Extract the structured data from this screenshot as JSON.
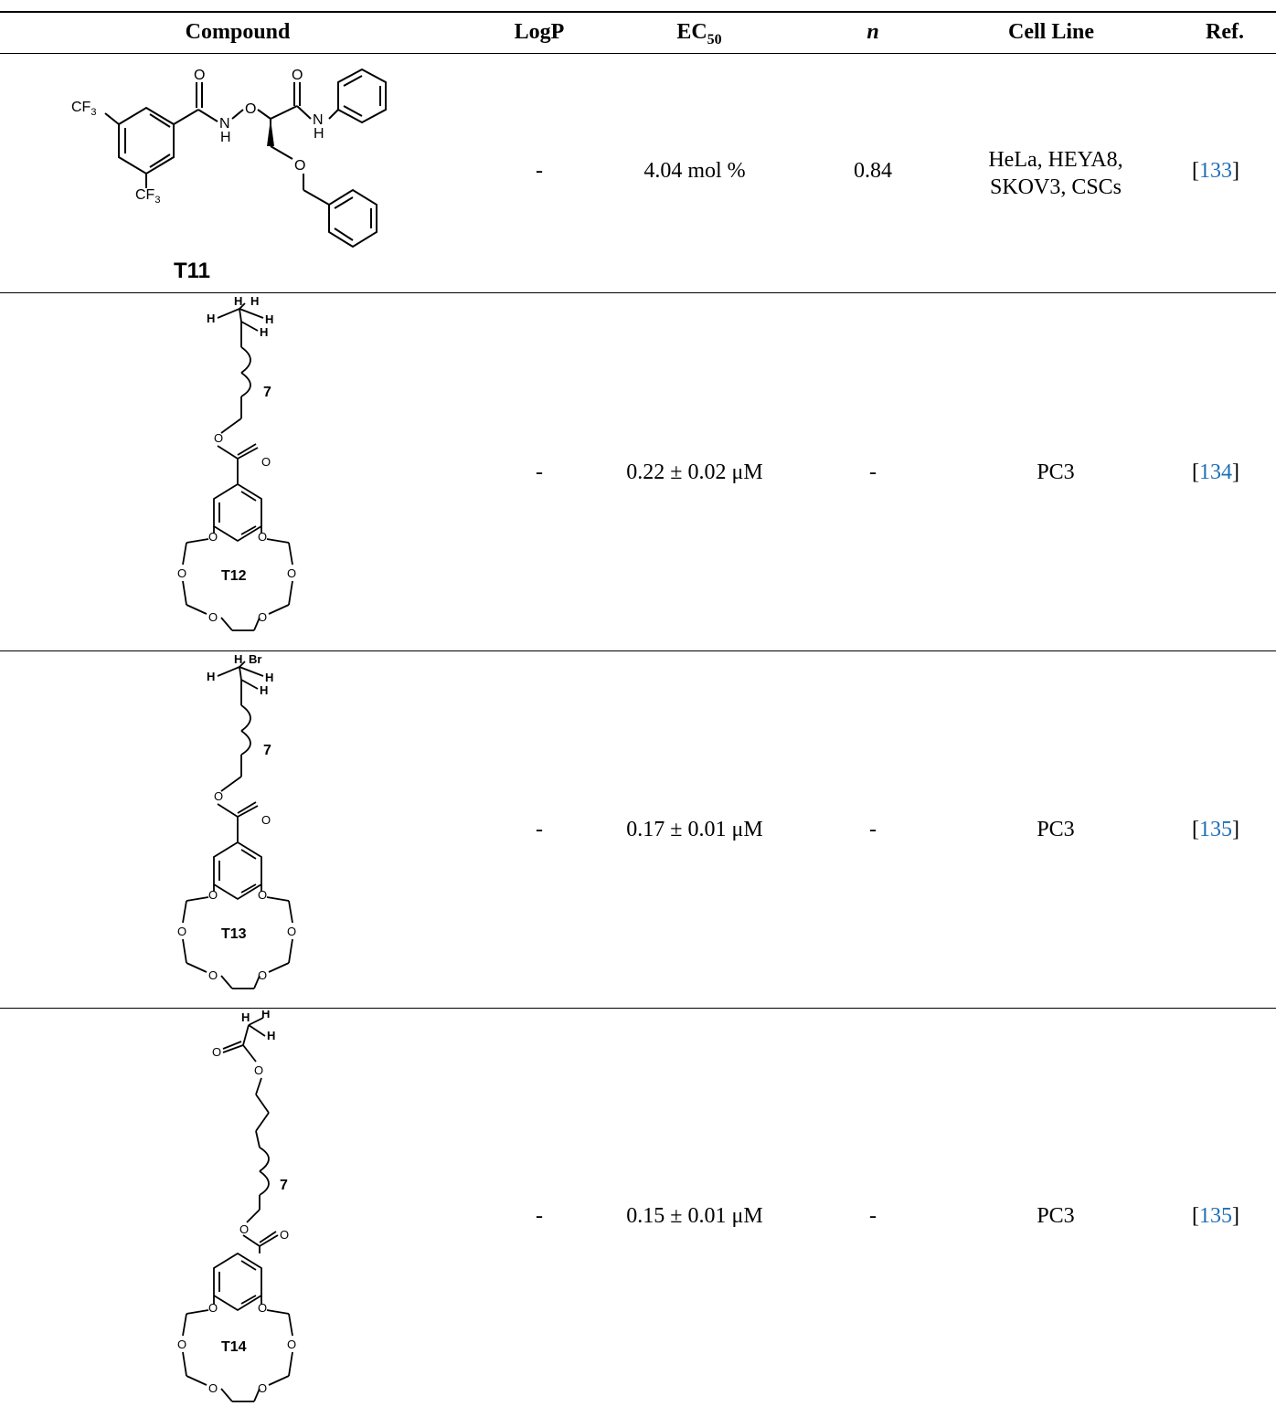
{
  "header": {
    "compound": "Compound",
    "logp": "LogP",
    "ec50_base": "EC",
    "ec50_sub": "50",
    "n": "n",
    "cell_line": "Cell Line",
    "ref": "Ref."
  },
  "rows": [
    {
      "compound_label": "T11",
      "logp": "-",
      "ec50": "4.04 mol %",
      "n": "0.84",
      "cell_line_1": "HeLa, HEYA8,",
      "cell_line_2": "SKOV3, CSCs",
      "ref_num": "133"
    },
    {
      "compound_label": "T12",
      "logp": "-",
      "ec50": "0.22 ± 0.02 μM",
      "n": "-",
      "cell_line": "PC3",
      "ref_num": "134"
    },
    {
      "compound_label": "T13",
      "logp": "-",
      "ec50": "0.17 ± 0.01 μM",
      "n": "-",
      "cell_line": "PC3",
      "ref_num": "135"
    },
    {
      "compound_label": "T14",
      "logp": "-",
      "ec50": "0.15 ± 0.01 μM",
      "n": "-",
      "cell_line": "PC3",
      "ref_num": "135"
    }
  ],
  "atoms": {
    "cf3": "CF",
    "three": "3",
    "o": "O",
    "n": "N",
    "h": "H",
    "br": "Br",
    "seven": "7"
  }
}
